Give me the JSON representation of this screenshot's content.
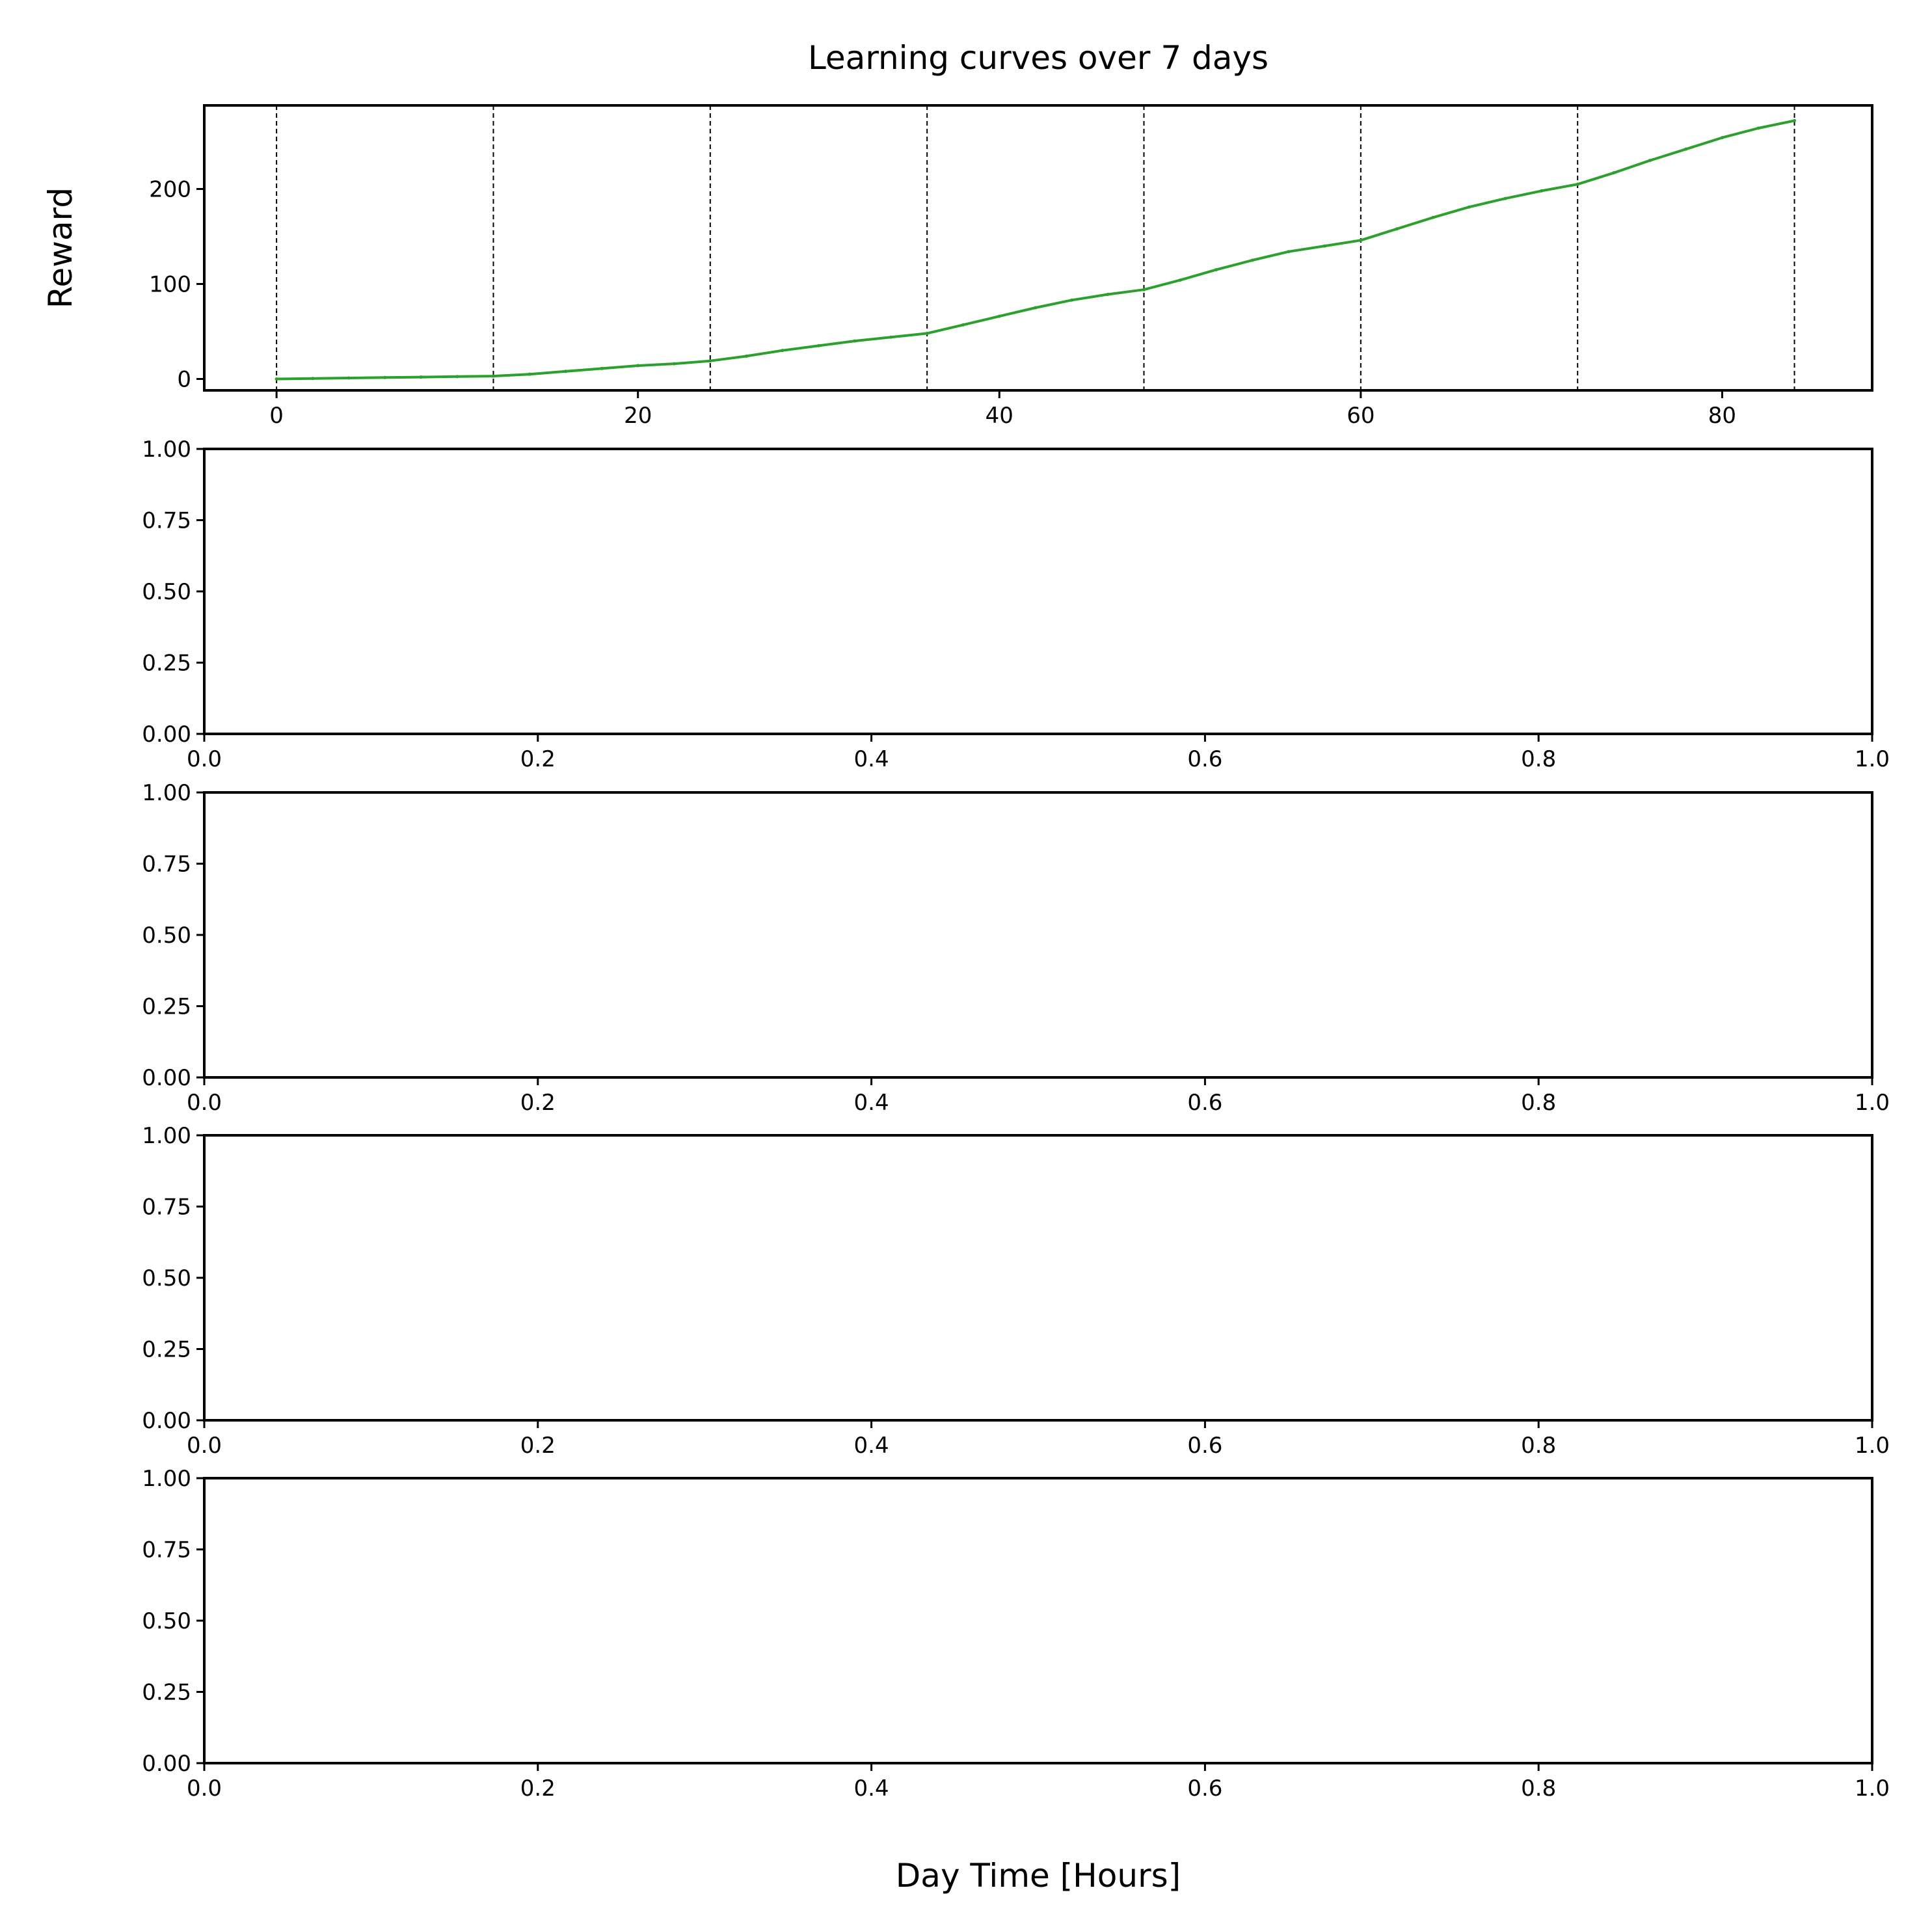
{
  "figure": {
    "title": "Learning curves over 7 days",
    "xlabel": "Day Time [Hours]"
  },
  "chart_data": [
    {
      "type": "line",
      "title": "Learning curves over 7 days",
      "xlabel": "",
      "ylabel": "Reward",
      "xlim": [
        -4,
        88.3
      ],
      "ylim": [
        -12,
        288
      ],
      "xticks": [
        0,
        20,
        40,
        60,
        80
      ],
      "yticks": [
        0,
        100,
        200
      ],
      "grid": false,
      "vlines": [
        0,
        12,
        24,
        36,
        48,
        60,
        72,
        84
      ],
      "vline_style": "dashed",
      "series": [
        {
          "color": "#2ca02c",
          "x": [
            0,
            2,
            4,
            6,
            8,
            10,
            12,
            14,
            16,
            18,
            20,
            22,
            24,
            26,
            28,
            30,
            32,
            34,
            36,
            38,
            40,
            42,
            44,
            46,
            48,
            50,
            52,
            54,
            56,
            58,
            60,
            62,
            64,
            66,
            68,
            70,
            72,
            74,
            76,
            78,
            80,
            82,
            84
          ],
          "y": [
            0,
            0.5,
            1,
            1.5,
            2,
            2.5,
            3,
            5,
            8,
            11,
            14,
            16,
            19,
            24,
            30,
            35,
            40,
            44,
            48,
            57,
            66,
            75,
            83,
            89,
            94,
            104,
            115,
            125,
            134,
            140,
            146,
            158,
            170,
            181,
            190,
            198,
            205,
            217,
            230,
            242,
            254,
            264,
            272
          ]
        }
      ]
    },
    {
      "type": "line",
      "xlim": [
        0,
        1
      ],
      "ylim": [
        0,
        1
      ],
      "xticks": [
        0,
        0.2,
        0.4,
        0.6,
        0.8,
        1
      ],
      "yticks": [
        0,
        0.25,
        0.5,
        0.75,
        1
      ],
      "xticklabels": [
        "0.0",
        "0.2",
        "0.4",
        "0.6",
        "0.8",
        "1.0"
      ],
      "yticklabels": [
        "0.00",
        "0.25",
        "0.50",
        "0.75",
        "1.00"
      ],
      "series": []
    },
    {
      "type": "line",
      "xlim": [
        0,
        1
      ],
      "ylim": [
        0,
        1
      ],
      "xticks": [
        0,
        0.2,
        0.4,
        0.6,
        0.8,
        1
      ],
      "yticks": [
        0,
        0.25,
        0.5,
        0.75,
        1
      ],
      "xticklabels": [
        "0.0",
        "0.2",
        "0.4",
        "0.6",
        "0.8",
        "1.0"
      ],
      "yticklabels": [
        "0.00",
        "0.25",
        "0.50",
        "0.75",
        "1.00"
      ],
      "series": []
    },
    {
      "type": "line",
      "xlim": [
        0,
        1
      ],
      "ylim": [
        0,
        1
      ],
      "xticks": [
        0,
        0.2,
        0.4,
        0.6,
        0.8,
        1
      ],
      "yticks": [
        0,
        0.25,
        0.5,
        0.75,
        1
      ],
      "xticklabels": [
        "0.0",
        "0.2",
        "0.4",
        "0.6",
        "0.8",
        "1.0"
      ],
      "yticklabels": [
        "0.00",
        "0.25",
        "0.50",
        "0.75",
        "1.00"
      ],
      "series": []
    },
    {
      "type": "line",
      "xlim": [
        0,
        1
      ],
      "ylim": [
        0,
        1
      ],
      "xticks": [
        0,
        0.2,
        0.4,
        0.6,
        0.8,
        1
      ],
      "yticks": [
        0,
        0.25,
        0.5,
        0.75,
        1
      ],
      "xticklabels": [
        "0.0",
        "0.2",
        "0.4",
        "0.6",
        "0.8",
        "1.0"
      ],
      "yticklabels": [
        "0.00",
        "0.25",
        "0.50",
        "0.75",
        "1.00"
      ],
      "series": []
    }
  ]
}
